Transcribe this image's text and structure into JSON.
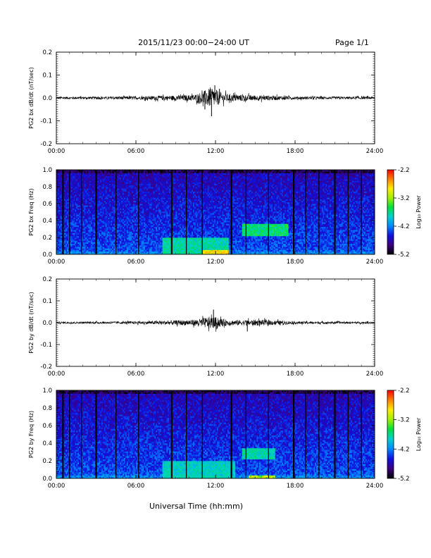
{
  "header": {
    "title": "2015/11/23  00:00−24:00 UT",
    "page": "Page 1/1"
  },
  "footer": {
    "xlabel": "Universal Time (hh:mm)"
  },
  "colors": {
    "trace": "#000000",
    "colormap": [
      "#000000",
      "#3b0080",
      "#1010e0",
      "#0088ff",
      "#00d0d0",
      "#00e040",
      "#a0f000",
      "#ffee00",
      "#ff8000",
      "#ff0000"
    ]
  },
  "chart_data": [
    {
      "id": "bx",
      "type": "line",
      "title": "",
      "xlabel": "",
      "ylabel": "PG2 bx dB/dt (nT/sec)",
      "xlim": [
        0,
        24
      ],
      "ylim": [
        -0.2,
        0.2
      ],
      "x_ticks": [
        "00:00",
        "06:00",
        "12:00",
        "18:00",
        "24:00"
      ],
      "y_ticks": [
        "-0.2",
        "-0.1",
        "0.0",
        "0.1",
        "0.2"
      ],
      "envelope": {
        "hours": [
          0,
          2,
          4,
          5,
          6,
          7,
          8,
          9,
          10,
          10.5,
          11,
          11.5,
          12,
          12.5,
          13,
          14,
          15,
          16,
          17,
          18,
          20,
          22,
          24
        ],
        "amplitude": [
          0.006,
          0.006,
          0.006,
          0.008,
          0.007,
          0.009,
          0.011,
          0.012,
          0.014,
          0.018,
          0.03,
          0.045,
          0.042,
          0.025,
          0.018,
          0.016,
          0.013,
          0.012,
          0.009,
          0.007,
          0.006,
          0.006,
          0.006
        ]
      },
      "extremes": [
        {
          "hour": 11.7,
          "value": -0.08
        },
        {
          "hour": 11.95,
          "value": 0.055
        },
        {
          "hour": 11.2,
          "value": -0.05
        },
        {
          "hour": 12.3,
          "value": 0.04
        }
      ],
      "grid": false
    },
    {
      "id": "bx-spec",
      "type": "heatmap",
      "title": "",
      "xlabel": "",
      "ylabel": "PG2 bx Freq (Hz)",
      "colorbar_label": "Log₁₀ Power",
      "xlim": [
        0,
        24
      ],
      "ylim": [
        0,
        1
      ],
      "zlim": [
        -5.2,
        -2.2
      ],
      "x_ticks": [
        "00:00",
        "06:00",
        "12:00",
        "18:00",
        "24:00"
      ],
      "y_ticks": [
        "0.0",
        "0.2",
        "0.4",
        "0.6",
        "0.8",
        "1.0"
      ],
      "colorbar_ticks": [
        "-5.2",
        "-4.2",
        "-3.2",
        "-2.2"
      ],
      "gap_lines_hours": [
        0.5,
        1.0,
        1.9,
        3.0,
        4.5,
        6.2,
        8.7,
        9.8,
        11.0,
        13.2,
        14.3,
        16.0,
        17.9,
        18.8,
        19.8,
        21.0,
        22.0,
        23.0
      ],
      "bright_regions": [
        {
          "hours": [
            14.0,
            17.5
          ],
          "freq_hz": [
            0.22,
            0.36
          ],
          "log_power": -3.4
        },
        {
          "hours": [
            8.0,
            13.0
          ],
          "freq_hz": [
            0.0,
            0.2
          ],
          "log_power": -3.6
        },
        {
          "hours": [
            11.0,
            13.0
          ],
          "freq_hz": [
            0.0,
            0.05
          ],
          "log_power": -2.6
        }
      ],
      "grid": false
    },
    {
      "id": "by",
      "type": "line",
      "title": "",
      "xlabel": "",
      "ylabel": "PG2 by dB/dt (nT/sec)",
      "xlim": [
        0,
        24
      ],
      "ylim": [
        -0.2,
        0.2
      ],
      "x_ticks": [
        "00:00",
        "06:00",
        "12:00",
        "18:00",
        "24:00"
      ],
      "y_ticks": [
        "-0.2",
        "-0.1",
        "0.0",
        "0.1",
        "0.2"
      ],
      "envelope": {
        "hours": [
          0,
          2,
          4,
          5,
          6,
          7,
          8,
          9,
          10,
          10.5,
          11,
          11.5,
          12,
          12.5,
          13,
          14,
          15,
          16,
          17,
          18,
          20,
          22,
          24
        ],
        "amplitude": [
          0.005,
          0.005,
          0.005,
          0.006,
          0.007,
          0.008,
          0.01,
          0.012,
          0.014,
          0.016,
          0.022,
          0.03,
          0.028,
          0.02,
          0.014,
          0.013,
          0.015,
          0.013,
          0.01,
          0.007,
          0.006,
          0.005,
          0.005
        ]
      },
      "extremes": [
        {
          "hour": 11.85,
          "value": 0.06
        },
        {
          "hour": 14.4,
          "value": -0.04
        },
        {
          "hour": 12.1,
          "value": -0.03
        }
      ],
      "grid": false
    },
    {
      "id": "by-spec",
      "type": "heatmap",
      "title": "",
      "xlabel": "",
      "ylabel": "PG2 by Freq (Hz)",
      "colorbar_label": "Log₁₀ Power",
      "xlim": [
        0,
        24
      ],
      "ylim": [
        0,
        1
      ],
      "zlim": [
        -5.2,
        -2.2
      ],
      "x_ticks": [
        "00:00",
        "06:00",
        "12:00",
        "18:00",
        "24:00"
      ],
      "y_ticks": [
        "0.0",
        "0.2",
        "0.4",
        "0.6",
        "0.8",
        "1.0"
      ],
      "colorbar_ticks": [
        "-5.2",
        "-4.2",
        "-3.2",
        "-2.2"
      ],
      "gap_lines_hours": [
        0.5,
        1.0,
        1.9,
        3.0,
        4.5,
        6.2,
        8.7,
        9.8,
        11.0,
        13.2,
        14.3,
        16.0,
        17.9,
        18.8,
        19.8,
        21.0,
        22.0,
        23.0
      ],
      "bright_regions": [
        {
          "hours": [
            14.0,
            16.5
          ],
          "freq_hz": [
            0.22,
            0.34
          ],
          "log_power": -3.6
        },
        {
          "hours": [
            8.0,
            13.5
          ],
          "freq_hz": [
            0.0,
            0.2
          ],
          "log_power": -3.7
        },
        {
          "hours": [
            14.5,
            16.5
          ],
          "freq_hz": [
            0.0,
            0.04
          ],
          "log_power": -2.8
        }
      ],
      "grid": false
    }
  ]
}
